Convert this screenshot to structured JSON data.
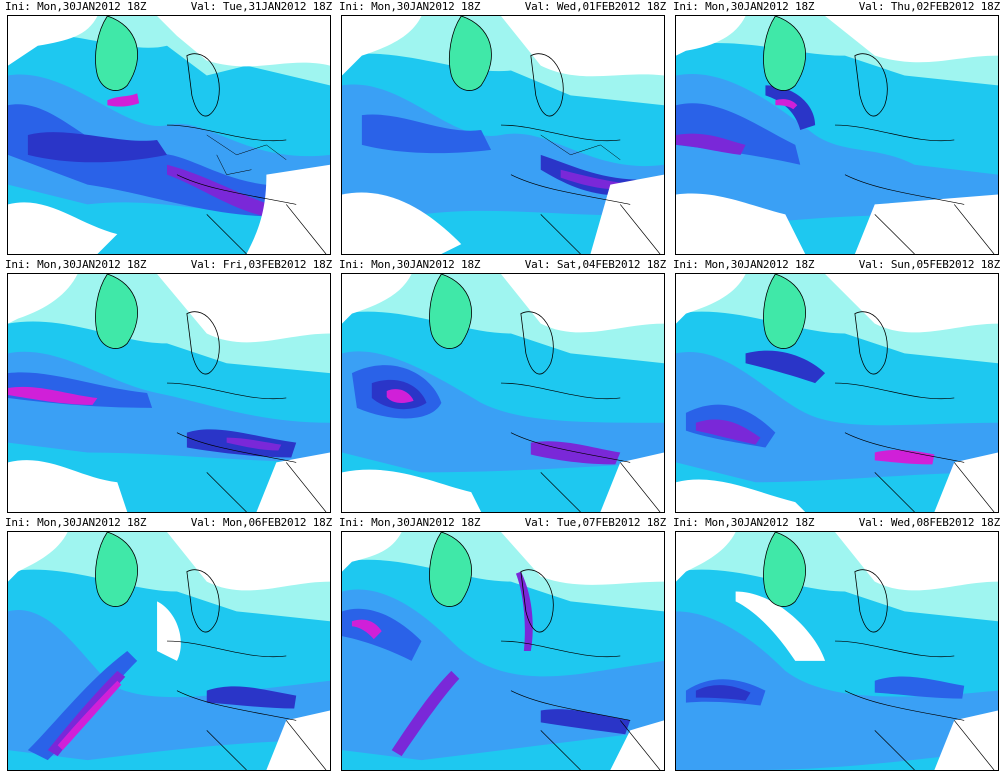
{
  "panels": [
    {
      "ini": "Ini: Mon,30JAN2012 18Z",
      "val": "Val: Tue,31JAN2012 18Z"
    },
    {
      "ini": "Ini: Mon,30JAN2012 18Z",
      "val": "Val: Wed,01FEB2012 18Z"
    },
    {
      "ini": "Ini: Mon,30JAN2012 18Z",
      "val": "Val: Thu,02FEB2012 18Z"
    },
    {
      "ini": "Ini: Mon,30JAN2012 18Z",
      "val": "Val: Fri,03FEB2012 18Z"
    },
    {
      "ini": "Ini: Mon,30JAN2012 18Z",
      "val": "Val: Sat,04FEB2012 18Z"
    },
    {
      "ini": "Ini: Mon,30JAN2012 18Z",
      "val": "Val: Sun,05FEB2012 18Z"
    },
    {
      "ini": "Ini: Mon,30JAN2012 18Z",
      "val": "Val: Mon,06FEB2012 18Z"
    },
    {
      "ini": "Ini: Mon,30JAN2012 18Z",
      "val": "Val: Tue,07FEB2012 18Z"
    },
    {
      "ini": "Ini: Mon,30JAN2012 18Z",
      "val": "Val: Wed,08FEB2012 18Z"
    }
  ],
  "colors": {
    "background": "#ffffff",
    "light_cyan": "#9ff5f0",
    "green": "#40e8a8",
    "cyan": "#1ec8f0",
    "light_blue": "#3aa0f5",
    "blue": "#2a62e8",
    "dark_blue": "#2a35c8",
    "purple": "#7a28d8",
    "magenta": "#d020d8",
    "coastline": "#000000"
  }
}
